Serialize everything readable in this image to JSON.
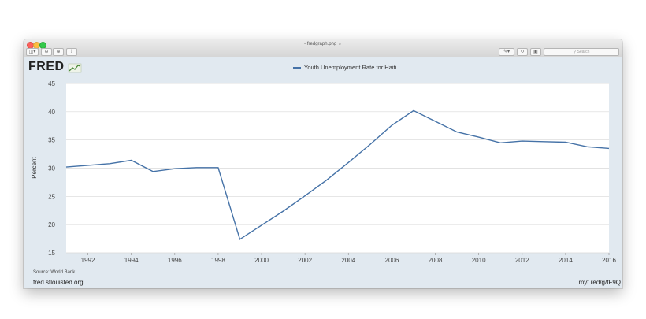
{
  "window": {
    "title": "fredgraph.png",
    "search_placeholder": "Search"
  },
  "toolbar": {
    "sidebar_icon": "sidebar-icon",
    "zoom_out_icon": "zoom-out-icon",
    "zoom_in_icon": "zoom-in-icon",
    "share_icon": "share-icon",
    "markup_icon": "pen-icon",
    "rotate_icon": "rotate-icon",
    "toolbox_icon": "toolbox-icon"
  },
  "logo": "FRED",
  "source": "Source: World Bank",
  "site": "fred.stlouisfed.org",
  "shortlink": "myf.red/g/fF9Q",
  "colors": {
    "line": "#4572a7",
    "plot_bg": "#ffffff",
    "frame_bg": "#e1e9f0",
    "grid": "#d8d8d8"
  },
  "chart_data": {
    "type": "line",
    "title": "",
    "ylabel": "Percent",
    "xlim": [
      1991,
      2016
    ],
    "ylim": [
      15,
      45
    ],
    "yticks": [
      15,
      20,
      25,
      30,
      35,
      40,
      45
    ],
    "xticks": [
      1992,
      1994,
      1996,
      1998,
      2000,
      2002,
      2004,
      2006,
      2008,
      2010,
      2012,
      2014,
      2016
    ],
    "grid": true,
    "legend_position": "top-center",
    "series": [
      {
        "name": "Youth Unemployment Rate for Haiti",
        "x": [
          1991,
          1992,
          1993,
          1994,
          1995,
          1996,
          1997,
          1998,
          1999,
          2000,
          2001,
          2002,
          2003,
          2004,
          2005,
          2006,
          2007,
          2008,
          2009,
          2010,
          2011,
          2012,
          2013,
          2014,
          2015,
          2016
        ],
        "values": [
          30.2,
          30.5,
          30.8,
          31.4,
          29.4,
          29.9,
          30.1,
          30.1,
          17.4,
          19.9,
          22.4,
          25.1,
          27.9,
          31.0,
          34.2,
          37.6,
          40.2,
          38.3,
          36.4,
          35.5,
          34.5,
          34.8,
          34.7,
          34.6,
          33.8,
          33.5
        ]
      }
    ]
  }
}
